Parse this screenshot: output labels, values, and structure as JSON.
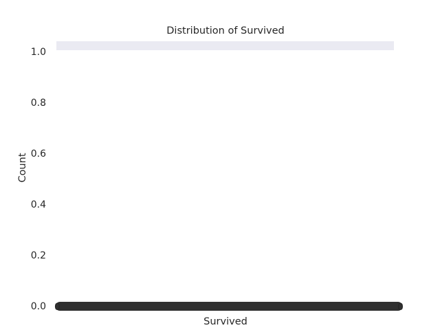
{
  "chart_data": {
    "type": "bar",
    "title": "Distribution of Survived",
    "xlabel": "Survived",
    "ylabel": "Count",
    "ylim": [
      0,
      1.05
    ],
    "yticks": [
      "0.0",
      "0.2",
      "0.4",
      "0.6",
      "0.8",
      "1.0"
    ],
    "grid": false,
    "categories": [
      "0",
      "1"
    ],
    "values": [
      1,
      1
    ],
    "x_tick_labels_overlapping": true,
    "colors": {
      "bar": "#eaeaf2",
      "text": "#262626",
      "tick_cluster": "#303030"
    }
  }
}
